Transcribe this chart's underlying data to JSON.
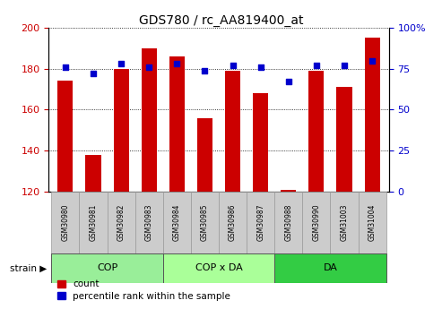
{
  "title": "GDS780 / rc_AA819400_at",
  "categories": [
    "GSM30980",
    "GSM30981",
    "GSM30982",
    "GSM30983",
    "GSM30984",
    "GSM30985",
    "GSM30986",
    "GSM30987",
    "GSM30988",
    "GSM30990",
    "GSM31003",
    "GSM31004"
  ],
  "counts": [
    174,
    138,
    180,
    190,
    186,
    156,
    179,
    168,
    121,
    179,
    171,
    195
  ],
  "percentiles": [
    76,
    72,
    78,
    76,
    78,
    74,
    77,
    76,
    67,
    77,
    77,
    80
  ],
  "ylim_left": [
    120,
    200
  ],
  "ylim_right": [
    0,
    100
  ],
  "yticks_left": [
    120,
    140,
    160,
    180,
    200
  ],
  "yticks_right": [
    0,
    25,
    50,
    75,
    100
  ],
  "bar_color": "#cc0000",
  "dot_color": "#0000cc",
  "groups": [
    {
      "label": "COP",
      "indices": [
        0,
        1,
        2,
        3
      ],
      "color": "#99ee99"
    },
    {
      "label": "COP x DA",
      "indices": [
        4,
        5,
        6,
        7
      ],
      "color": "#aaff99"
    },
    {
      "label": "DA",
      "indices": [
        8,
        9,
        10,
        11
      ],
      "color": "#33cc44"
    }
  ],
  "strain_label": "strain",
  "legend_count_label": "count",
  "legend_pct_label": "percentile rank within the sample",
  "bg_color": "#ffffff",
  "tick_label_color_left": "#cc0000",
  "tick_label_color_right": "#0000cc",
  "grid_color": "#000000",
  "gsm_box_color": "#cccccc",
  "gsm_box_edge": "#999999"
}
